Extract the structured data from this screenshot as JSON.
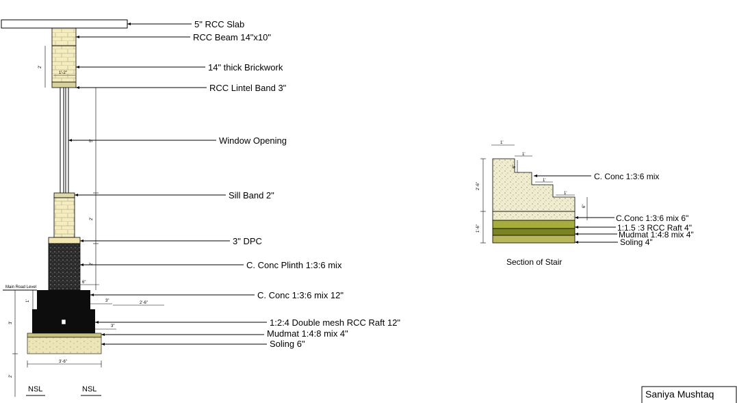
{
  "wall_section": {
    "labels": {
      "slab": "5\" RCC Slab",
      "beam": "RCC Beam 14\"x10\"",
      "brickwork": "14\" thick Brickwork",
      "lintel": "RCC Lintel Band 3\"",
      "window": "Window Opening",
      "sill": "Sill Band 2\"",
      "dpc": "3\" DPC",
      "plinth": "C. Conc Plinth 1:3:6 mix",
      "cconc12": "C. Conc 1:3:6 mix 12\"",
      "raft": "1:2:4 Double mesh RCC Raft 12\"",
      "mudmat": "Mudmat 1:4:8 mix 4\"",
      "soling": "Soling  6\""
    },
    "dims": {
      "d_2ft_top": "2'",
      "d_1ft2": "1'-2\"",
      "d_window": "5'",
      "d_2ft_sill": "2'",
      "d_2ft_plinth": "2'",
      "d_6in": "6\"",
      "d_1ft": "1'",
      "d_3in_a": "3\"",
      "d_2ft6": "2'-6\"",
      "d_3in_b": "3\"",
      "d_3ft": "3'",
      "d_2ft_bottom": "2'",
      "d_3ft6": "3'-6\"",
      "road_level": "Main Road Level"
    },
    "nsl_left": "NSL",
    "nsl_right": "NSL"
  },
  "stair": {
    "labels": {
      "cconc": "C. Conc 1:3:6 mix",
      "cconc6": "C.Conc 1:3:6  mix 6\"",
      "raft": "1:1.5 :3 RCC Raft 4\"",
      "mudmat": "Mudmat 1:4:8 mix 4\"",
      "soling": "Soling 4\""
    },
    "dims": {
      "top_width": "1'",
      "tread1": "1'",
      "tread2": "1'",
      "tread3": "1'",
      "riser": "6\"",
      "riser_right": "6\"",
      "height_upper": "2'-6\"",
      "height_lower": "1'-6\""
    },
    "caption": "Section of Stair"
  },
  "author": {
    "name": "Saniya Mushtaq"
  },
  "colors": {
    "brick": "#f5ecc0",
    "brick_line": "#b9b28a",
    "lintel": "#d8d39a",
    "plinth": "#2a2a2a",
    "raft": "#0d0d0d",
    "mudmat": "#c9c27a",
    "soling": "#ece5b8",
    "stair_conc": "#efecd0",
    "stair_raft": "#a7ad3c",
    "stair_mudmat": "#7b8420",
    "stair_soling": "#b8b85a"
  }
}
